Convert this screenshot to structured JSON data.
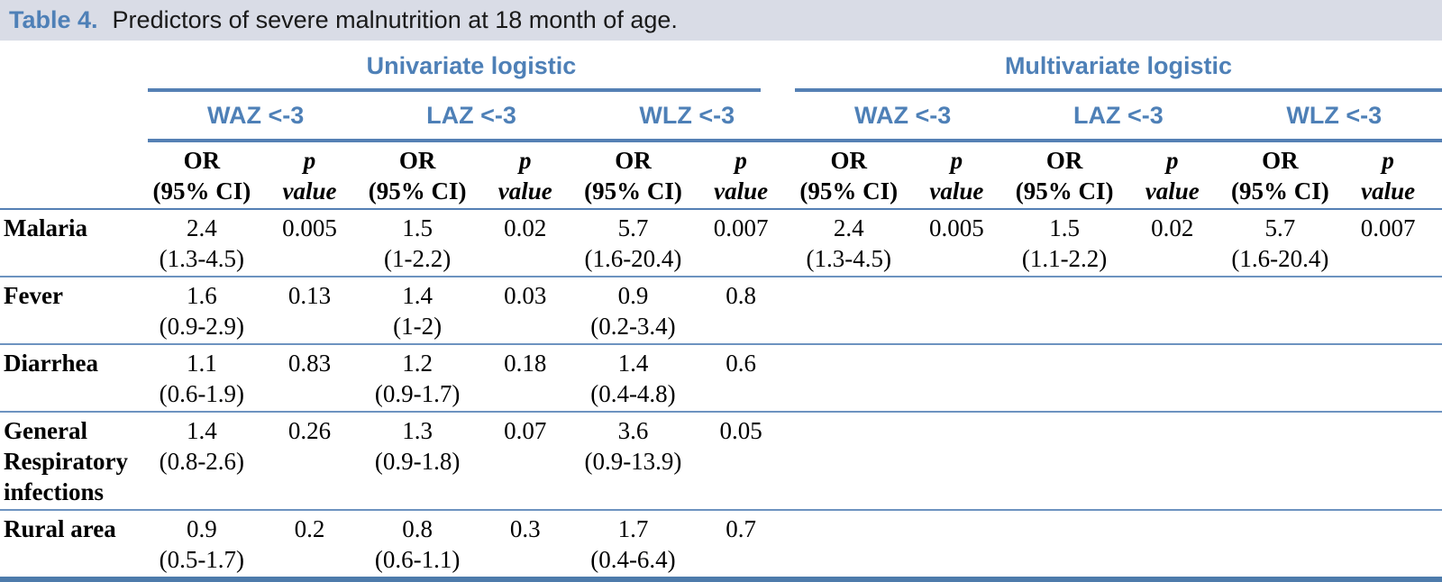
{
  "title": {
    "label": "Table 4.",
    "text": "Predictors of severe malnutrition at 18 month of age."
  },
  "colors": {
    "accent_blue_text": "#4e80b7",
    "title_bar_background": "#d9dce6",
    "rule_blue": "#5580b4",
    "row_separator_blue": "#6d93c0",
    "bottom_border_blue": "#4d7bab"
  },
  "table": {
    "group_headers": [
      "Univariate logistic",
      "Multivariate logistic"
    ],
    "subgroup_headers": [
      "WAZ <-3",
      "LAZ <-3",
      "WLZ <-3",
      "WAZ <-3",
      "LAZ <-3",
      "WLZ <-3"
    ],
    "measure_headers": {
      "or_line1": "OR",
      "or_line2": "(95% CI)",
      "p_line1": "p",
      "p_line2": "value"
    },
    "rows": [
      {
        "label": "Malaria",
        "values": [
          {
            "or": "2.4",
            "ci": "(1.3-4.5)",
            "p": "0.005"
          },
          {
            "or": "1.5",
            "ci": "(1-2.2)",
            "p": "0.02"
          },
          {
            "or": "5.7",
            "ci": "(1.6-20.4)",
            "p": "0.007"
          },
          {
            "or": "2.4",
            "ci": "(1.3-4.5)",
            "p": "0.005"
          },
          {
            "or": "1.5",
            "ci": "(1.1-2.2)",
            "p": "0.02"
          },
          {
            "or": "5.7",
            "ci": "(1.6-20.4)",
            "p": "0.007"
          }
        ]
      },
      {
        "label": "Fever",
        "values": [
          {
            "or": "1.6",
            "ci": "(0.9-2.9)",
            "p": "0.13"
          },
          {
            "or": "1.4",
            "ci": "(1-2)",
            "p": "0.03"
          },
          {
            "or": "0.9",
            "ci": "(0.2-3.4)",
            "p": "0.8"
          },
          {
            "or": "",
            "ci": "",
            "p": ""
          },
          {
            "or": "",
            "ci": "",
            "p": ""
          },
          {
            "or": "",
            "ci": "",
            "p": ""
          }
        ]
      },
      {
        "label": "Diarrhea",
        "values": [
          {
            "or": "1.1",
            "ci": "(0.6-1.9)",
            "p": "0.83"
          },
          {
            "or": "1.2",
            "ci": "(0.9-1.7)",
            "p": "0.18"
          },
          {
            "or": "1.4",
            "ci": "(0.4-4.8)",
            "p": "0.6"
          },
          {
            "or": "",
            "ci": "",
            "p": ""
          },
          {
            "or": "",
            "ci": "",
            "p": ""
          },
          {
            "or": "",
            "ci": "",
            "p": ""
          }
        ]
      },
      {
        "label": "General Respiratory infections",
        "values": [
          {
            "or": "1.4",
            "ci": "(0.8-2.6)",
            "p": "0.26"
          },
          {
            "or": "1.3",
            "ci": "(0.9-1.8)",
            "p": "0.07"
          },
          {
            "or": "3.6",
            "ci": "(0.9-13.9)",
            "p": "0.05"
          },
          {
            "or": "",
            "ci": "",
            "p": ""
          },
          {
            "or": "",
            "ci": "",
            "p": ""
          },
          {
            "or": "",
            "ci": "",
            "p": ""
          }
        ]
      },
      {
        "label": "Rural area",
        "values": [
          {
            "or": "0.9",
            "ci": "(0.5-1.7)",
            "p": "0.2"
          },
          {
            "or": "0.8",
            "ci": "(0.6-1.1)",
            "p": "0.3"
          },
          {
            "or": "1.7",
            "ci": "(0.4-6.4)",
            "p": "0.7"
          },
          {
            "or": "",
            "ci": "",
            "p": ""
          },
          {
            "or": "",
            "ci": "",
            "p": ""
          },
          {
            "or": "",
            "ci": "",
            "p": ""
          }
        ]
      }
    ]
  }
}
